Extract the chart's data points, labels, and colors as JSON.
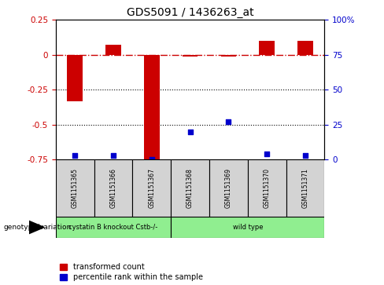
{
  "title": "GDS5091 / 1436263_at",
  "samples": [
    "GSM1151365",
    "GSM1151366",
    "GSM1151367",
    "GSM1151368",
    "GSM1151369",
    "GSM1151370",
    "GSM1151371"
  ],
  "red_values": [
    -0.33,
    0.07,
    -0.76,
    -0.01,
    -0.01,
    0.1,
    0.1
  ],
  "blue_percentiles": [
    3,
    3,
    0,
    20,
    27,
    4,
    3
  ],
  "ylim_left": [
    -0.75,
    0.25
  ],
  "ylim_right": [
    0,
    100
  ],
  "group_names": [
    "cystatin B knockout Cstb-/-",
    "wild type"
  ],
  "group_colors": [
    "#90EE90",
    "#90EE90"
  ],
  "group_ranges": [
    [
      0,
      3
    ],
    [
      3,
      7
    ]
  ],
  "red_color": "#cc0000",
  "blue_color": "#0000cc",
  "background_color": "#ffffff",
  "dashed_line_color": "#cc0000",
  "tick_label_color_left": "#cc0000",
  "tick_label_color_right": "#0000cc"
}
